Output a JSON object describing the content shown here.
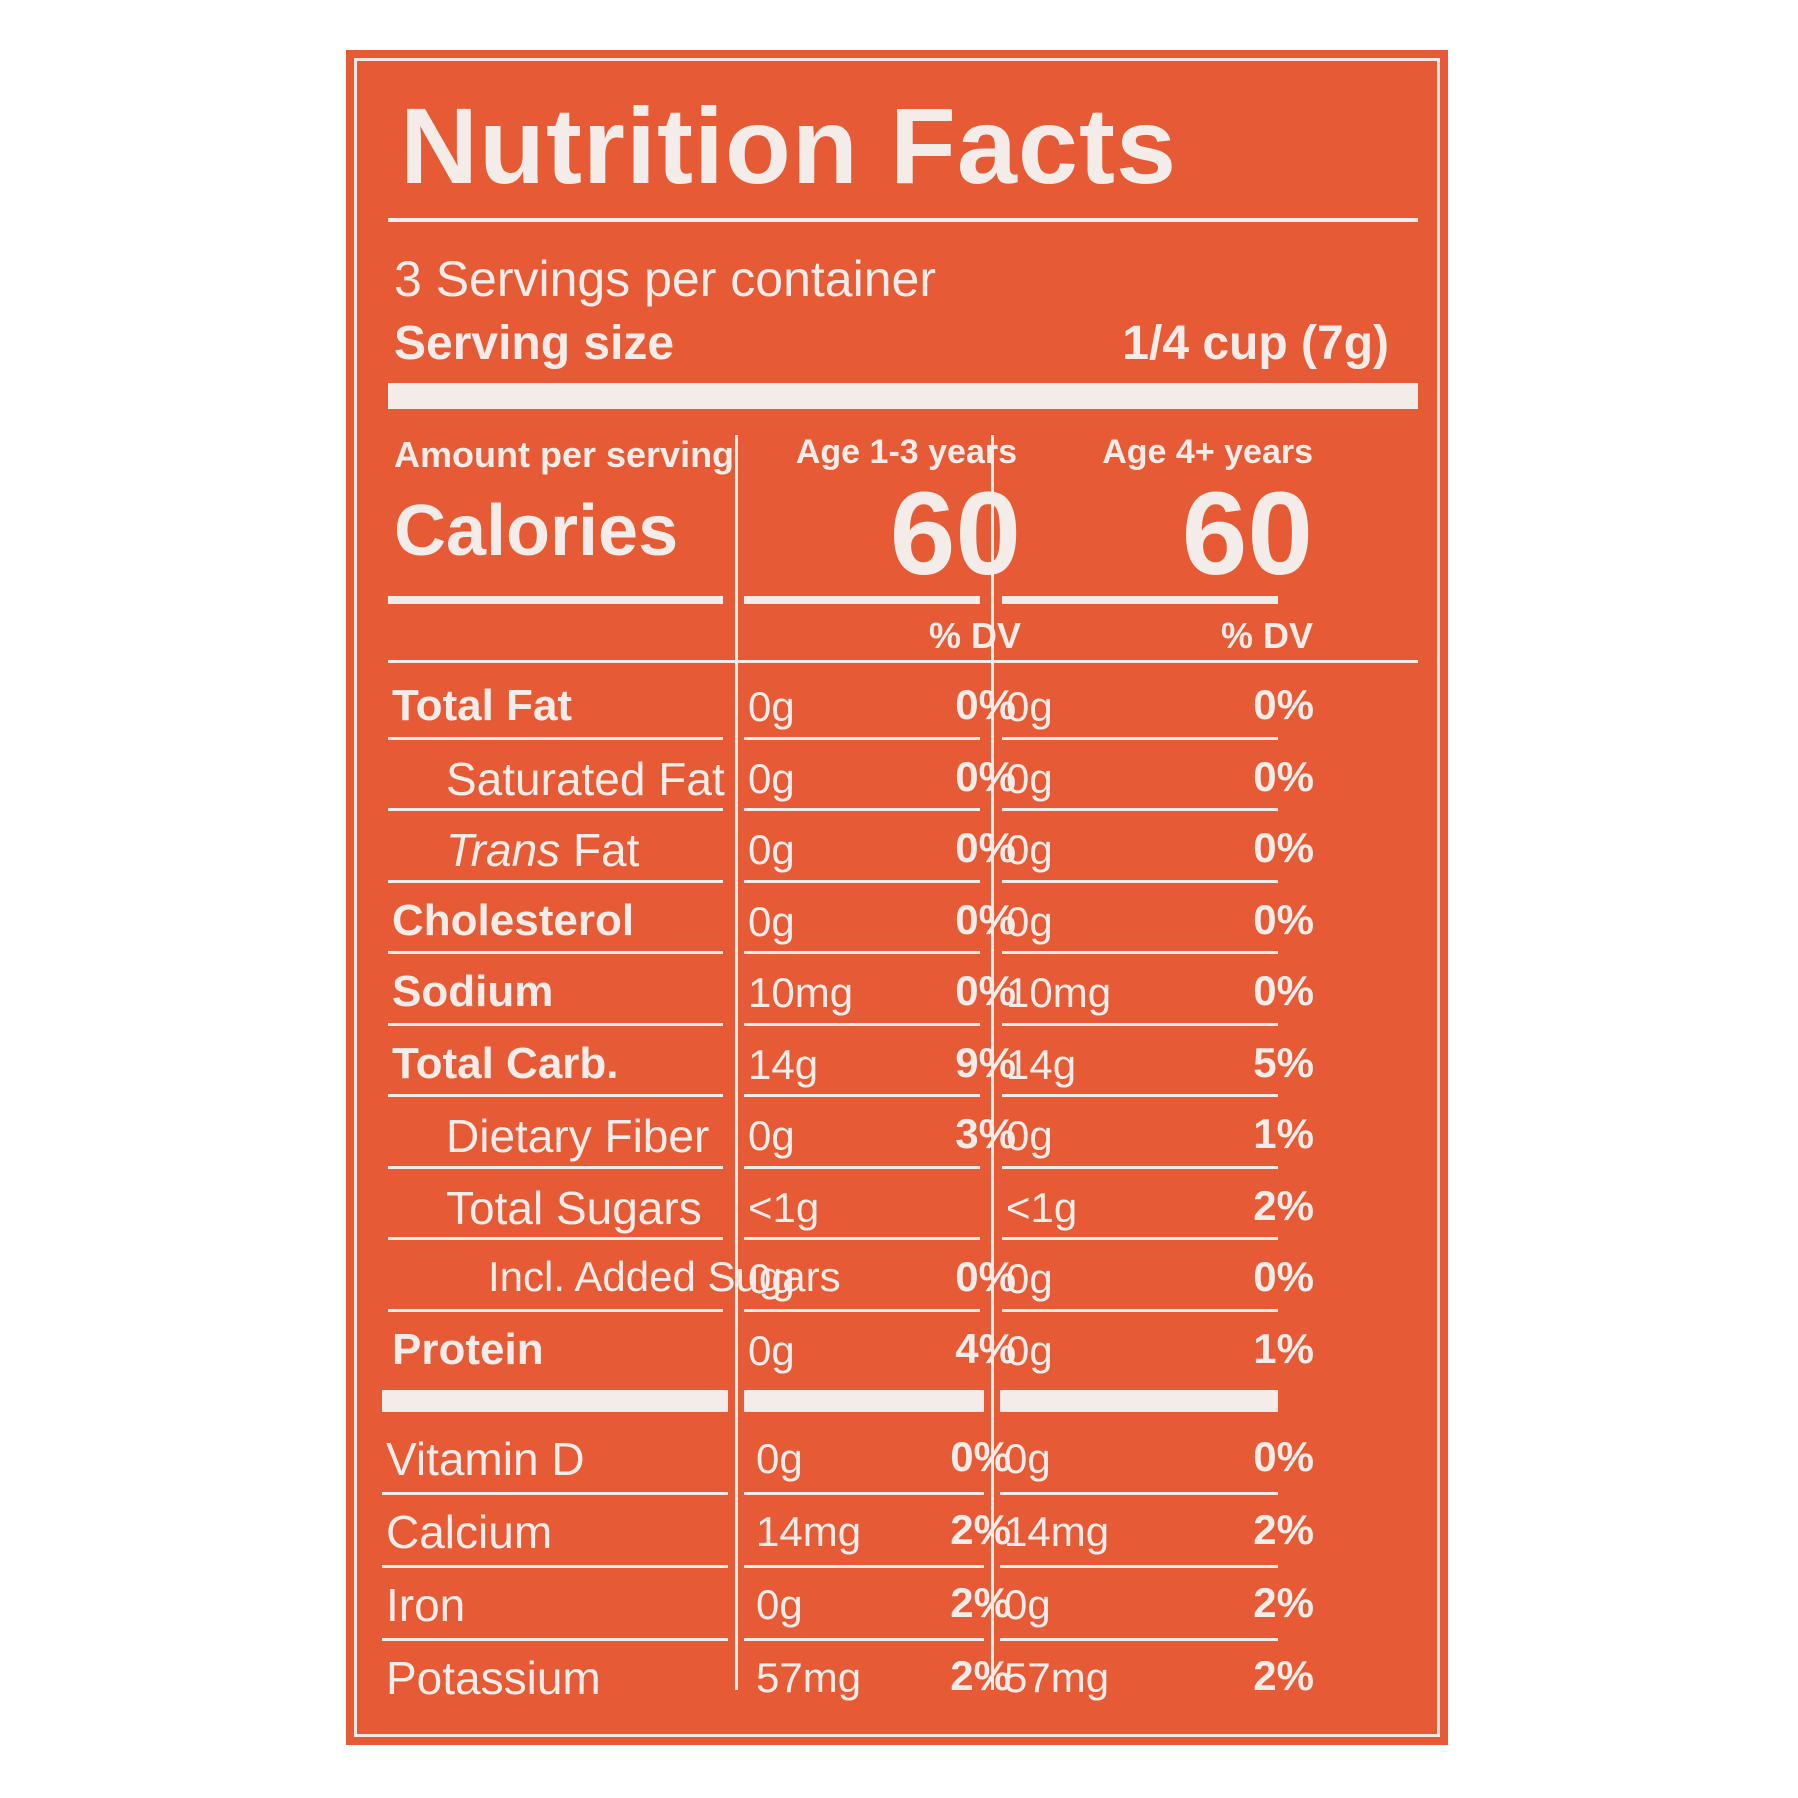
{
  "label": {
    "title": "Nutrition Facts",
    "servings_per_container": "3 Servings per container",
    "serving_size_label": "Serving size",
    "serving_size_value": "1/4 cup (7g)",
    "amount_per_serving": "Amount per serving",
    "calories_label": "Calories",
    "columns": [
      {
        "heading": "Age 1-3 years",
        "calories": "60",
        "dv_header": "% DV"
      },
      {
        "heading": "Age 4+ years",
        "calories": "60",
        "dv_header": "% DV"
      }
    ],
    "nutrients": [
      {
        "name": "Total Fat",
        "style": "bold",
        "c1_amount": "0g",
        "c1_dv": "0%",
        "c2_amount": "0g",
        "c2_dv": "0%"
      },
      {
        "name": "Saturated Fat",
        "style": "indent",
        "c1_amount": "0g",
        "c1_dv": "0%",
        "c2_amount": "0g",
        "c2_dv": "0%"
      },
      {
        "name_italic": "Trans",
        "name": " Fat",
        "style": "indent",
        "c1_amount": "0g",
        "c1_dv": "0%",
        "c2_amount": "0g",
        "c2_dv": "0%"
      },
      {
        "name": "Cholesterol",
        "style": "bold",
        "c1_amount": "0g",
        "c1_dv": "0%",
        "c2_amount": "0g",
        "c2_dv": "0%"
      },
      {
        "name": "Sodium",
        "style": "bold",
        "c1_amount": "10mg",
        "c1_dv": "0%",
        "c2_amount": "10mg",
        "c2_dv": "0%"
      },
      {
        "name": "Total Carb.",
        "style": "bold",
        "c1_amount": "14g",
        "c1_dv": "9%",
        "c2_amount": "14g",
        "c2_dv": "5%"
      },
      {
        "name": "Dietary Fiber",
        "style": "indent",
        "c1_amount": "0g",
        "c1_dv": "3%",
        "c2_amount": "0g",
        "c2_dv": "1%"
      },
      {
        "name": "Total Sugars",
        "style": "indent",
        "c1_amount": "<1g",
        "c1_dv": "",
        "c2_amount": "<1g",
        "c2_dv": "2%"
      },
      {
        "name": "Incl. Added Sugars",
        "style": "indent2",
        "c1_amount": "0g",
        "c1_dv": "0%",
        "c2_amount": "0g",
        "c2_dv": "0%"
      },
      {
        "name": "Protein",
        "style": "bold",
        "c1_amount": "0g",
        "c1_dv": "4%",
        "c2_amount": "0g",
        "c2_dv": "1%"
      }
    ],
    "vitamins": [
      {
        "name": "Vitamin D",
        "c1_amount": "0g",
        "c1_dv": "0%",
        "c2_amount": "0g",
        "c2_dv": "0%"
      },
      {
        "name": "Calcium",
        "c1_amount": "14mg",
        "c1_dv": "2%",
        "c2_amount": "14mg",
        "c2_dv": "2%"
      },
      {
        "name": "Iron",
        "c1_amount": "0g",
        "c1_dv": "2%",
        "c2_amount": "0g",
        "c2_dv": "2%"
      },
      {
        "name": "Potassium",
        "c1_amount": "57mg",
        "c1_dv": "2%",
        "c2_amount": "57mg",
        "c2_dv": "2%"
      }
    ],
    "colors": {
      "panel": "#e65a35",
      "ink": "#f4ece8"
    }
  }
}
